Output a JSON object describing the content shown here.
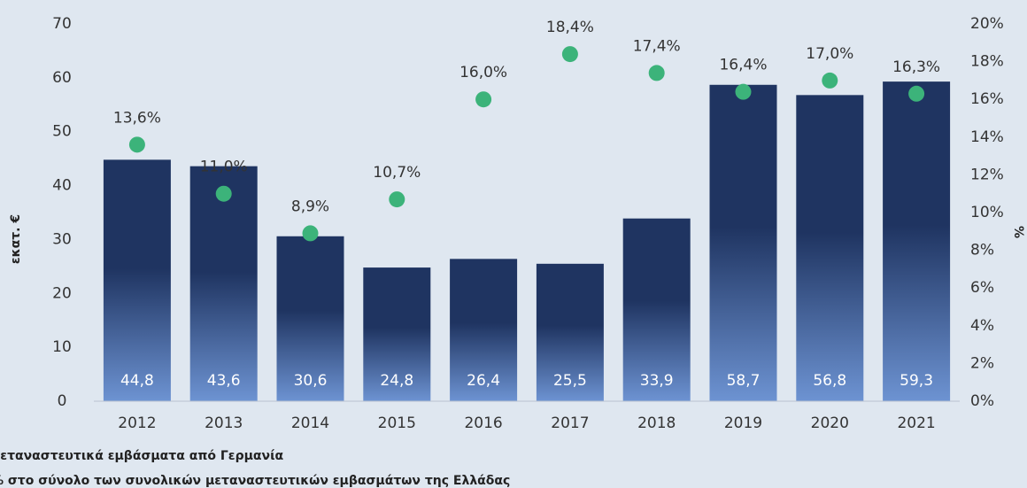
{
  "chart_data": {
    "type": "bar_dot",
    "categories": [
      "2012",
      "2013",
      "2014",
      "2015",
      "2016",
      "2017",
      "2018",
      "2019",
      "2020",
      "2021"
    ],
    "ylabel": "εκατ. €",
    "y2label": "%",
    "ylim": [
      0,
      70
    ],
    "yticks": [
      0,
      10,
      20,
      30,
      40,
      50,
      60,
      70
    ],
    "y2lim": [
      0,
      20
    ],
    "y2ticks": [
      {
        "value": 0,
        "label": "0%"
      },
      {
        "value": 2,
        "label": "2%"
      },
      {
        "value": 4,
        "label": "4%"
      },
      {
        "value": 6,
        "label": "6%"
      },
      {
        "value": 8,
        "label": "8%"
      },
      {
        "value": 10,
        "label": "10%"
      },
      {
        "value": 12,
        "label": "12%"
      },
      {
        "value": 14,
        "label": "14%"
      },
      {
        "value": 16,
        "label": "16%"
      },
      {
        "value": 18,
        "label": "18%"
      },
      {
        "value": 20,
        "label": "20%"
      }
    ],
    "series": [
      {
        "name": "μεταναστευτικά εμβάσματα από Γερμανία",
        "color": "#1f3461",
        "gradient_color": "#6d93d2",
        "values": [
          44.8,
          43.6,
          30.6,
          24.8,
          26.4,
          25.5,
          33.9,
          58.7,
          56.8,
          59.3
        ],
        "value_labels": [
          "44,8",
          "43,6",
          "30,6",
          "24,8",
          "26,4",
          "25,5",
          "33,9",
          "58,7",
          "56,8",
          "59,3"
        ]
      },
      {
        "name": "% στο σύνολο των συνολικών μεταναστευτικών εμβασμάτων της Ελλάδας",
        "color": "#3cb37a",
        "axis": "y2",
        "values": [
          13.6,
          11.0,
          8.9,
          10.7,
          16.0,
          18.4,
          17.4,
          16.4,
          17.0,
          16.3
        ],
        "value_labels": [
          "13,6%",
          "11,0%",
          "8,9%",
          "10,7%",
          "16,0%",
          "18,4%",
          "17,4%",
          "16,4%",
          "17,0%",
          "16,3%"
        ]
      }
    ]
  }
}
